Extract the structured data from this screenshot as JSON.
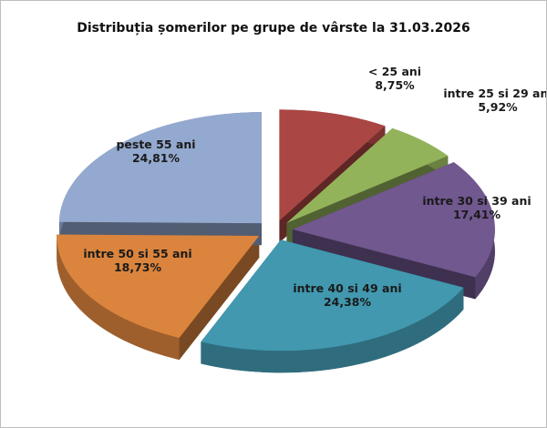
{
  "chart_data": {
    "type": "pie3d",
    "title": "Distribuția șomerilor pe grupe de vârste la 31.03.2026",
    "categories": [
      "< 25 ani",
      "intre 25 si 29 ani",
      "intre 30 si 39 ani",
      "intre 40 si 49 ani",
      "intre 50 si 55 ani",
      "peste 55 ani"
    ],
    "values": [
      8.75,
      5.92,
      17.41,
      24.38,
      18.73,
      24.81
    ],
    "value_labels": [
      "8,75%",
      "5,92%",
      "17,41%",
      "24,38%",
      "18,73%",
      "24,81%"
    ],
    "colors": [
      "#aa4643",
      "#93b35a",
      "#71588f",
      "#4198af",
      "#db843d",
      "#93a9cf"
    ]
  }
}
